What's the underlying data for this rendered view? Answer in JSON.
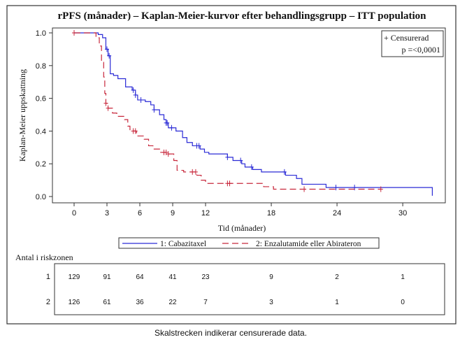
{
  "chart_data": {
    "type": "line",
    "subtype": "kaplan-meier step",
    "title": "rPFS (månader) – Kaplan-Meier-kurvor efter behandlingsgrupp – ITT population",
    "xlabel": "Tid (månader)",
    "ylabel": "Kaplan-Meier uppskattning",
    "xlim": [
      -2,
      34
    ],
    "ylim": [
      0,
      1
    ],
    "xticks": [
      "0",
      "3",
      "6",
      "9",
      "12",
      "18",
      "24",
      "30"
    ],
    "xtick_values": [
      0,
      3,
      6,
      9,
      12,
      18,
      24,
      30
    ],
    "yticks": [
      "0.0",
      "0.2",
      "0.4",
      "0.6",
      "0.8",
      "1.0"
    ],
    "ytick_values": [
      0,
      0.2,
      0.4,
      0.6,
      0.8,
      1.0
    ],
    "grid": false,
    "legend_position": "bottom",
    "inset_legend": {
      "censor_label": "+ Censurerad",
      "pvalue": "p =<0,0001"
    },
    "series": [
      {
        "name": "1: Cabazitaxel",
        "color": "#2b2bd6",
        "style": "solid",
        "steps": [
          [
            0,
            1.0
          ],
          [
            2.2,
            0.99
          ],
          [
            2.6,
            0.97
          ],
          [
            2.9,
            0.9
          ],
          [
            3.1,
            0.86
          ],
          [
            3.3,
            0.75
          ],
          [
            3.6,
            0.74
          ],
          [
            4.0,
            0.72
          ],
          [
            4.7,
            0.67
          ],
          [
            5.3,
            0.65
          ],
          [
            5.6,
            0.62
          ],
          [
            5.8,
            0.59
          ],
          [
            6.5,
            0.58
          ],
          [
            7.0,
            0.56
          ],
          [
            7.3,
            0.53
          ],
          [
            7.8,
            0.5
          ],
          [
            8.2,
            0.47
          ],
          [
            8.4,
            0.45
          ],
          [
            8.6,
            0.42
          ],
          [
            9.3,
            0.4
          ],
          [
            9.9,
            0.36
          ],
          [
            10.3,
            0.33
          ],
          [
            10.8,
            0.31
          ],
          [
            11.5,
            0.29
          ],
          [
            11.9,
            0.27
          ],
          [
            12.3,
            0.26
          ],
          [
            14.0,
            0.24
          ],
          [
            14.5,
            0.22
          ],
          [
            15.3,
            0.2
          ],
          [
            15.6,
            0.18
          ],
          [
            16.3,
            0.165
          ],
          [
            17.1,
            0.15
          ],
          [
            19.3,
            0.13
          ],
          [
            20.3,
            0.11
          ],
          [
            20.8,
            0.075
          ],
          [
            23.0,
            0.055
          ],
          [
            32.7,
            0.005
          ]
        ],
        "end": 32.7,
        "censored": [
          3.0,
          3.2,
          5.4,
          5.6,
          6.1,
          7.3,
          8.4,
          8.5,
          8.9,
          11.2,
          11.4,
          14.0,
          15.2,
          16.2,
          19.2,
          23.9,
          25.6
        ]
      },
      {
        "name": "2: Enzalutamide eller Abirateron",
        "color": "#c8283c",
        "style": "dashed",
        "steps": [
          [
            0,
            1.0
          ],
          [
            2.0,
            0.97
          ],
          [
            2.3,
            0.92
          ],
          [
            2.5,
            0.82
          ],
          [
            2.7,
            0.73
          ],
          [
            2.8,
            0.63
          ],
          [
            2.9,
            0.57
          ],
          [
            3.1,
            0.54
          ],
          [
            3.5,
            0.51
          ],
          [
            3.9,
            0.49
          ],
          [
            4.6,
            0.47
          ],
          [
            4.9,
            0.43
          ],
          [
            5.1,
            0.4
          ],
          [
            5.7,
            0.37
          ],
          [
            6.4,
            0.35
          ],
          [
            6.8,
            0.31
          ],
          [
            7.2,
            0.29
          ],
          [
            7.8,
            0.27
          ],
          [
            8.6,
            0.26
          ],
          [
            9.1,
            0.22
          ],
          [
            9.4,
            0.16
          ],
          [
            10.0,
            0.15
          ],
          [
            11.2,
            0.13
          ],
          [
            11.6,
            0.1
          ],
          [
            12.0,
            0.08
          ],
          [
            17.3,
            0.06
          ],
          [
            18.2,
            0.045
          ]
        ],
        "end": 28.0,
        "censored": [
          0,
          2.9,
          3.1,
          5.4,
          5.6,
          8.2,
          8.4,
          8.6,
          10.8,
          11.1,
          14.0,
          14.2,
          21.0,
          28.0
        ]
      }
    ]
  },
  "at_risk": {
    "title": "Antal i riskzonen",
    "rows": [
      {
        "label": "1",
        "values": [
          "129",
          "91",
          "64",
          "41",
          "23",
          "9",
          "2",
          "1"
        ]
      },
      {
        "label": "2",
        "values": [
          "126",
          "61",
          "36",
          "22",
          "7",
          "3",
          "1",
          "0"
        ]
      }
    ]
  },
  "caption": "Skalstrecken indikerar censurerade data."
}
